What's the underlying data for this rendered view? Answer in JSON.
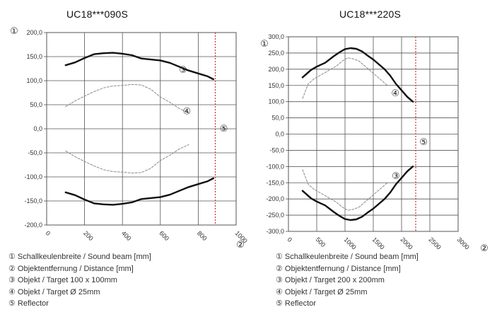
{
  "chart_data": [
    {
      "type": "line",
      "title": "UC18***090S",
      "ylabel": "①",
      "xlabel": "②",
      "xlim": [
        0,
        1000
      ],
      "ylim": [
        -200,
        200
      ],
      "x_ticks": [
        "0",
        "200",
        "400",
        "600",
        "800",
        "1000"
      ],
      "y_ticks": [
        "200,0",
        "150,0",
        "100,0",
        "50,0",
        "0,0",
        "-50,0",
        "-100,0",
        "-150,0",
        "-200,0"
      ],
      "grid": true,
      "series": [
        {
          "name": "③",
          "style": "thick",
          "x": [
            100,
            150,
            200,
            250,
            300,
            350,
            400,
            450,
            500,
            550,
            600,
            650,
            700,
            750,
            800,
            850,
            880
          ],
          "y": [
            132,
            138,
            147,
            155,
            157,
            158,
            156,
            153,
            146,
            144,
            142,
            137,
            129,
            121,
            115,
            109,
            103
          ]
        },
        {
          "name": "③",
          "style": "thick",
          "x": [
            100,
            150,
            200,
            250,
            300,
            350,
            400,
            450,
            500,
            550,
            600,
            650,
            700,
            750,
            800,
            850,
            880
          ],
          "y": [
            -132,
            -138,
            -147,
            -155,
            -157,
            -158,
            -156,
            -153,
            -146,
            -144,
            -142,
            -137,
            -129,
            -121,
            -115,
            -109,
            -103
          ]
        },
        {
          "name": "④",
          "style": "dashed",
          "x": [
            100,
            150,
            200,
            250,
            300,
            350,
            400,
            450,
            500,
            550,
            600,
            650,
            700,
            750
          ],
          "y": [
            46,
            58,
            68,
            77,
            85,
            89,
            90,
            92,
            91,
            82,
            66,
            55,
            42,
            33
          ]
        },
        {
          "name": "④",
          "style": "dashed",
          "x": [
            100,
            150,
            200,
            250,
            300,
            350,
            400,
            450,
            500,
            550,
            600,
            650,
            700,
            750
          ],
          "y": [
            -46,
            -58,
            -68,
            -77,
            -85,
            -89,
            -90,
            -92,
            -91,
            -82,
            -66,
            -55,
            -42,
            -33
          ]
        }
      ],
      "reflector": {
        "name": "⑤",
        "x": 890,
        "color": "#c0392b"
      },
      "annotations": [
        {
          "text": "③",
          "x": 720,
          "y": 122
        },
        {
          "text": "④",
          "x": 740,
          "y": 36
        },
        {
          "text": "⑤",
          "x": 935,
          "y": 0
        }
      ],
      "legend": [
        "① Schallkeulenbreite / Sound beam [mm]",
        "② Objektentfernung / Distance [mm]",
        "③ Objekt / Target 100 x 100mm",
        "④ Objekt / Target Ø 25mm",
        "⑤ Reflector"
      ],
      "colors": {
        "thick": "#111111",
        "dashed": "#8a8a8a",
        "grid": "#555555"
      }
    },
    {
      "type": "line",
      "title": "UC18***220S",
      "ylabel": "①",
      "xlabel": "②",
      "xlim": [
        0,
        3000
      ],
      "ylim": [
        -300,
        300
      ],
      "x_ticks": [
        "0",
        "500",
        "1000",
        "1500",
        "2000",
        "2500",
        "3000"
      ],
      "y_ticks": [
        "300,0",
        "250,0",
        "200,0",
        "150,0",
        "100,0",
        "50,0",
        "0,0",
        "-50,0",
        "-100,0",
        "-150,0",
        "-200,0",
        "-250,0",
        "-300,0"
      ],
      "grid": true,
      "series": [
        {
          "name": "③",
          "style": "thick",
          "x": [
            250,
            400,
            500,
            650,
            800,
            900,
            1000,
            1100,
            1200,
            1300,
            1400,
            1500,
            1600,
            1700,
            1800,
            1900,
            2000,
            2100,
            2200
          ],
          "y": [
            175,
            198,
            208,
            220,
            240,
            252,
            262,
            265,
            263,
            255,
            242,
            230,
            215,
            200,
            180,
            155,
            135,
            115,
            100
          ]
        },
        {
          "name": "③",
          "style": "thick",
          "x": [
            250,
            400,
            500,
            650,
            800,
            900,
            1000,
            1100,
            1200,
            1300,
            1400,
            1500,
            1600,
            1700,
            1800,
            1900,
            2000,
            2100,
            2200
          ],
          "y": [
            -175,
            -198,
            -208,
            -220,
            -240,
            -252,
            -262,
            -265,
            -263,
            -255,
            -242,
            -230,
            -215,
            -200,
            -180,
            -155,
            -135,
            -115,
            -100
          ]
        },
        {
          "name": "④",
          "style": "dashed",
          "x": [
            250,
            350,
            450,
            550,
            650,
            750,
            850,
            950,
            1050,
            1150,
            1250,
            1350,
            1450,
            1550,
            1650,
            1750
          ],
          "y": [
            110,
            155,
            170,
            180,
            190,
            200,
            210,
            225,
            235,
            232,
            225,
            210,
            195,
            180,
            165,
            150
          ]
        },
        {
          "name": "④",
          "style": "dashed",
          "x": [
            250,
            350,
            450,
            550,
            650,
            750,
            850,
            950,
            1050,
            1150,
            1250,
            1350,
            1450,
            1550,
            1650,
            1750
          ],
          "y": [
            -110,
            -155,
            -170,
            -180,
            -190,
            -200,
            -210,
            -225,
            -235,
            -232,
            -225,
            -210,
            -195,
            -180,
            -165,
            -150
          ]
        }
      ],
      "reflector": {
        "name": "⑤",
        "x": 2250,
        "color": "#c0392b"
      },
      "annotations": [
        {
          "text": "④",
          "x": 1890,
          "y": 125
        },
        {
          "text": "③",
          "x": 1900,
          "y": -130
        },
        {
          "text": "⑤",
          "x": 2390,
          "y": -25
        }
      ],
      "legend": [
        "① Schallkeulenbreite / Sound beam [mm]",
        "② Objektentfernung / Distance [mm]",
        "③ Objekt / Target 200 x 200mm",
        "④ Objekt / Target Ø 25mm",
        "⑤ Reflector"
      ],
      "colors": {
        "thick": "#111111",
        "dashed": "#8a8a8a",
        "grid": "#555555"
      }
    }
  ]
}
